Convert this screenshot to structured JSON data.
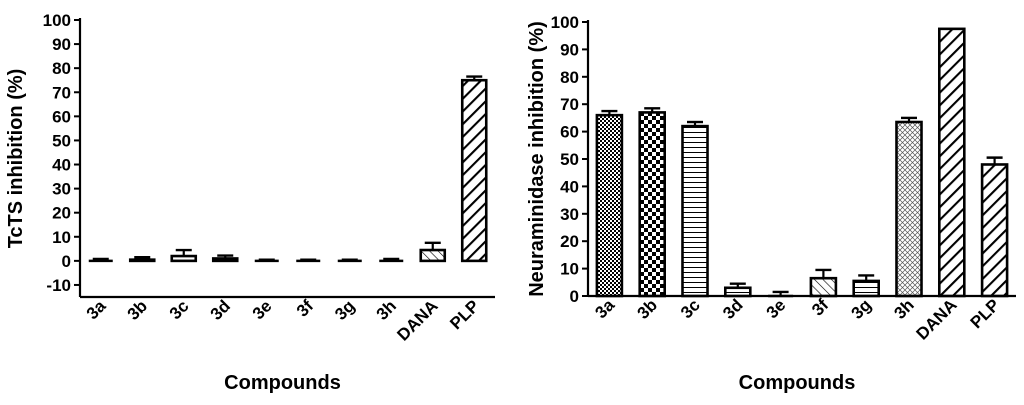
{
  "chart_data": [
    {
      "type": "bar",
      "title": "",
      "xlabel": "Compounds",
      "ylabel": "TcTS inhibition (%)",
      "ylim": [
        -15,
        100
      ],
      "yticks": [
        -10,
        0,
        10,
        20,
        30,
        40,
        50,
        60,
        70,
        80,
        90,
        100
      ],
      "grid": false,
      "legend": "none",
      "categories": [
        "3a",
        "3b",
        "3c",
        "3d",
        "3e",
        "3f",
        "3g",
        "3h",
        "DANA",
        "PLP"
      ],
      "values": [
        0,
        0.5,
        2,
        1,
        0,
        0,
        0,
        0,
        4.5,
        75
      ],
      "errors": [
        0.8,
        1,
        2.5,
        1.2,
        0.5,
        0.5,
        0.5,
        0.8,
        3,
        1.5
      ],
      "patterns": [
        "none",
        "none",
        "none",
        "none",
        "none",
        "none",
        "none",
        "none",
        "diag-thin",
        "diag-thick"
      ]
    },
    {
      "type": "bar",
      "title": "",
      "xlabel": "Compounds",
      "ylabel": "Neuraminidase inhibition (%)",
      "ylim": [
        0,
        100
      ],
      "yticks": [
        0,
        10,
        20,
        30,
        40,
        50,
        60,
        70,
        80,
        90,
        100
      ],
      "grid": false,
      "legend": "none",
      "categories": [
        "3a",
        "3b",
        "3c",
        "3d",
        "3e",
        "3f",
        "3g",
        "3h",
        "DANA",
        "PLP"
      ],
      "values": [
        66,
        67,
        62,
        3,
        0,
        6.5,
        5.5,
        63.5,
        97.5,
        48
      ],
      "errors": [
        1.5,
        1.5,
        1.5,
        1.5,
        1.5,
        3,
        2,
        1.5,
        0,
        2.5
      ],
      "patterns": [
        "fine-check",
        "checker",
        "hlines",
        "hlines",
        "none",
        "diag-thin",
        "hlines",
        "crosshatch",
        "diag-thick",
        "diag-thick"
      ]
    }
  ]
}
